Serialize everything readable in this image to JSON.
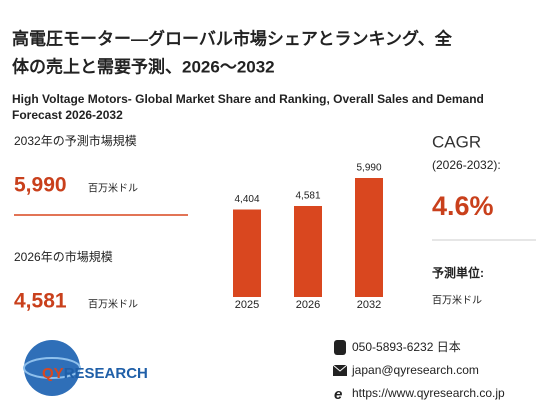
{
  "header": {
    "title_lines": [
      "高電圧モーター―グローバル市場シェアとランキング、全",
      "体の売上と需要予測、2026～2032"
    ],
    "subtitle_lines": [
      "High Voltage Motors- Global Market Share and Ranking, Overall Sales and Demand",
      "Forecast 2026-2032"
    ]
  },
  "left": {
    "forecast_label": "2032年の予測市場規模",
    "forecast_value": "5,990",
    "unit": "百万米ドル",
    "current_label": "2026年の市場規模",
    "current_value": "4,581"
  },
  "right": {
    "cagr_label": "CAGR",
    "cagr_period": "(2026-2032):",
    "cagr_value": "4.6%",
    "unit_label": "予測単位:",
    "unit": "百万米ドル"
  },
  "logo": {
    "mark": "QY",
    "rest": "RESEARCH"
  },
  "contact": {
    "phone": "050-5893-6232 日本",
    "email": "japan@qyresearch.com",
    "web": "https://www.qyresearch.co.jp"
  },
  "chart_data": {
    "type": "bar",
    "categories": [
      "2025",
      "2026",
      "2032"
    ],
    "values": [
      4404,
      4581,
      5990
    ],
    "value_labels": [
      "4,404",
      "4,581",
      "5,990"
    ],
    "color": "#d9471f"
  }
}
